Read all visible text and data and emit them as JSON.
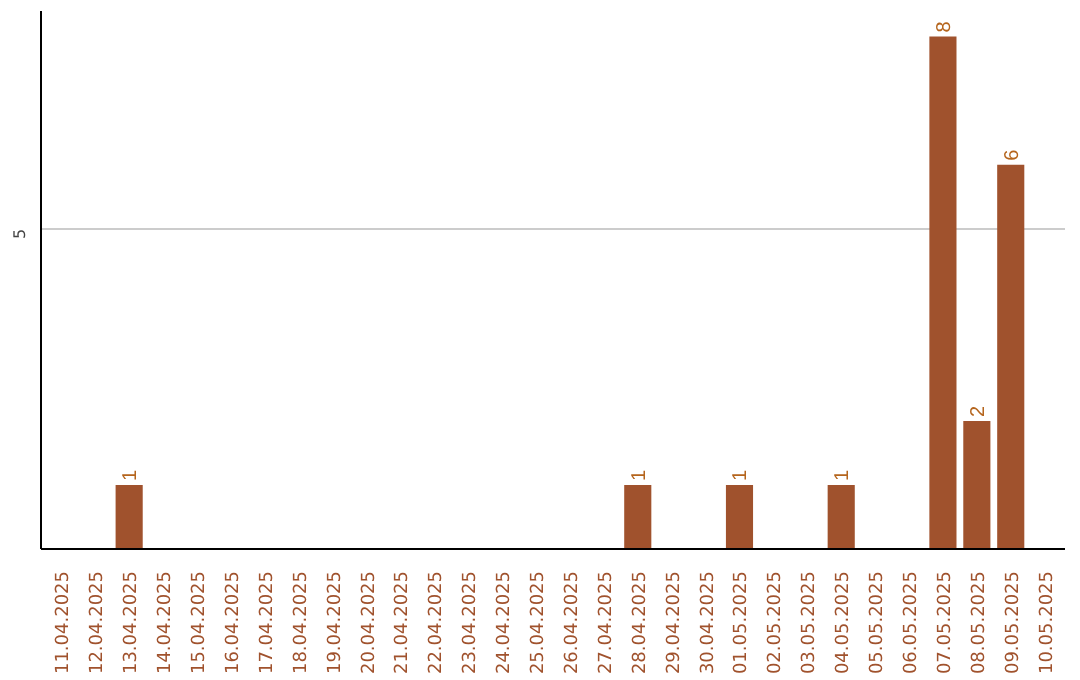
{
  "chart_data": {
    "type": "bar",
    "categories": [
      "11.04.2025",
      "12.04.2025",
      "13.04.2025",
      "14.04.2025",
      "15.04.2025",
      "16.04.2025",
      "17.04.2025",
      "18.04.2025",
      "19.04.2025",
      "20.04.2025",
      "21.04.2025",
      "22.04.2025",
      "23.04.2025",
      "24.04.2025",
      "25.04.2025",
      "26.04.2025",
      "27.04.2025",
      "28.04.2025",
      "29.04.2025",
      "30.04.2025",
      "01.05.2025",
      "02.05.2025",
      "03.05.2025",
      "04.05.2025",
      "05.05.2025",
      "06.05.2025",
      "07.05.2025",
      "08.05.2025",
      "09.05.2025",
      "10.05.2025"
    ],
    "values": [
      0,
      0,
      1,
      0,
      0,
      0,
      0,
      0,
      0,
      0,
      0,
      0,
      0,
      0,
      0,
      0,
      0,
      1,
      0,
      0,
      1,
      0,
      0,
      1,
      0,
      0,
      8,
      2,
      6,
      0
    ],
    "color": "#a0522d",
    "value_labels": [
      null,
      null,
      "1",
      null,
      null,
      null,
      null,
      null,
      null,
      null,
      null,
      null,
      null,
      null,
      null,
      null,
      null,
      "1",
      null,
      null,
      "1",
      null,
      null,
      "1",
      null,
      null,
      "8",
      "2",
      "6",
      null
    ],
    "ylim": [
      0,
      8.4
    ],
    "yticks": [
      5
    ],
    "grid": "y"
  }
}
